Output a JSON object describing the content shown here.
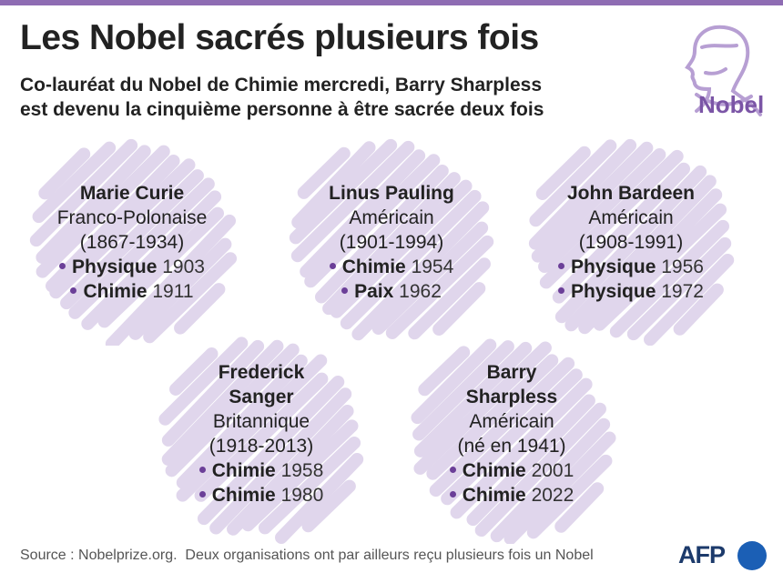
{
  "header": {
    "title": "Les Nobel sacrés plusieurs fois",
    "subtitle": [
      "Co-lauréat du Nobel de Chimie mercredi, Barry Sharpless",
      "est devenu la cinquième personne à être sacrée deux fois"
    ]
  },
  "logo": "Nobel",
  "laureates": [
    {
      "name": "Marie Curie",
      "nationality": "Franco-Polonaise",
      "dates": "(1867-1934)",
      "prizes": [
        {
          "field": "Physique",
          "year": 1903
        },
        {
          "field": "Chimie",
          "year": 1911
        }
      ]
    },
    {
      "name": "Linus Pauling",
      "nationality": "Américain",
      "dates": "(1901-1994)",
      "prizes": [
        {
          "field": "Chimie",
          "year": 1954
        },
        {
          "field": "Paix",
          "year": 1962
        }
      ]
    },
    {
      "name": "John Bardeen",
      "nationality": "Américain",
      "dates": "(1908-1991)",
      "prizes": [
        {
          "field": "Physique",
          "year": 1956
        },
        {
          "field": "Physique",
          "year": 1972
        }
      ]
    },
    {
      "name": "Frederick Sanger",
      "nationality": "Britannique",
      "dates": "(1918-2013)",
      "prizes": [
        {
          "field": "Chimie",
          "year": 1958
        },
        {
          "field": "Chimie",
          "year": 1980
        }
      ]
    },
    {
      "name": "Barry Sharpless",
      "nationality": "Américain",
      "dates": "(né en 1941)",
      "prizes": [
        {
          "field": "Chimie",
          "year": 2001
        },
        {
          "field": "Chimie",
          "year": 2022
        }
      ]
    }
  ],
  "footer": {
    "source": "Source : Nobelprize.org.  Deux organisations ont par ailleurs reçu plusieurs fois un Nobel",
    "agency": "AFP"
  }
}
